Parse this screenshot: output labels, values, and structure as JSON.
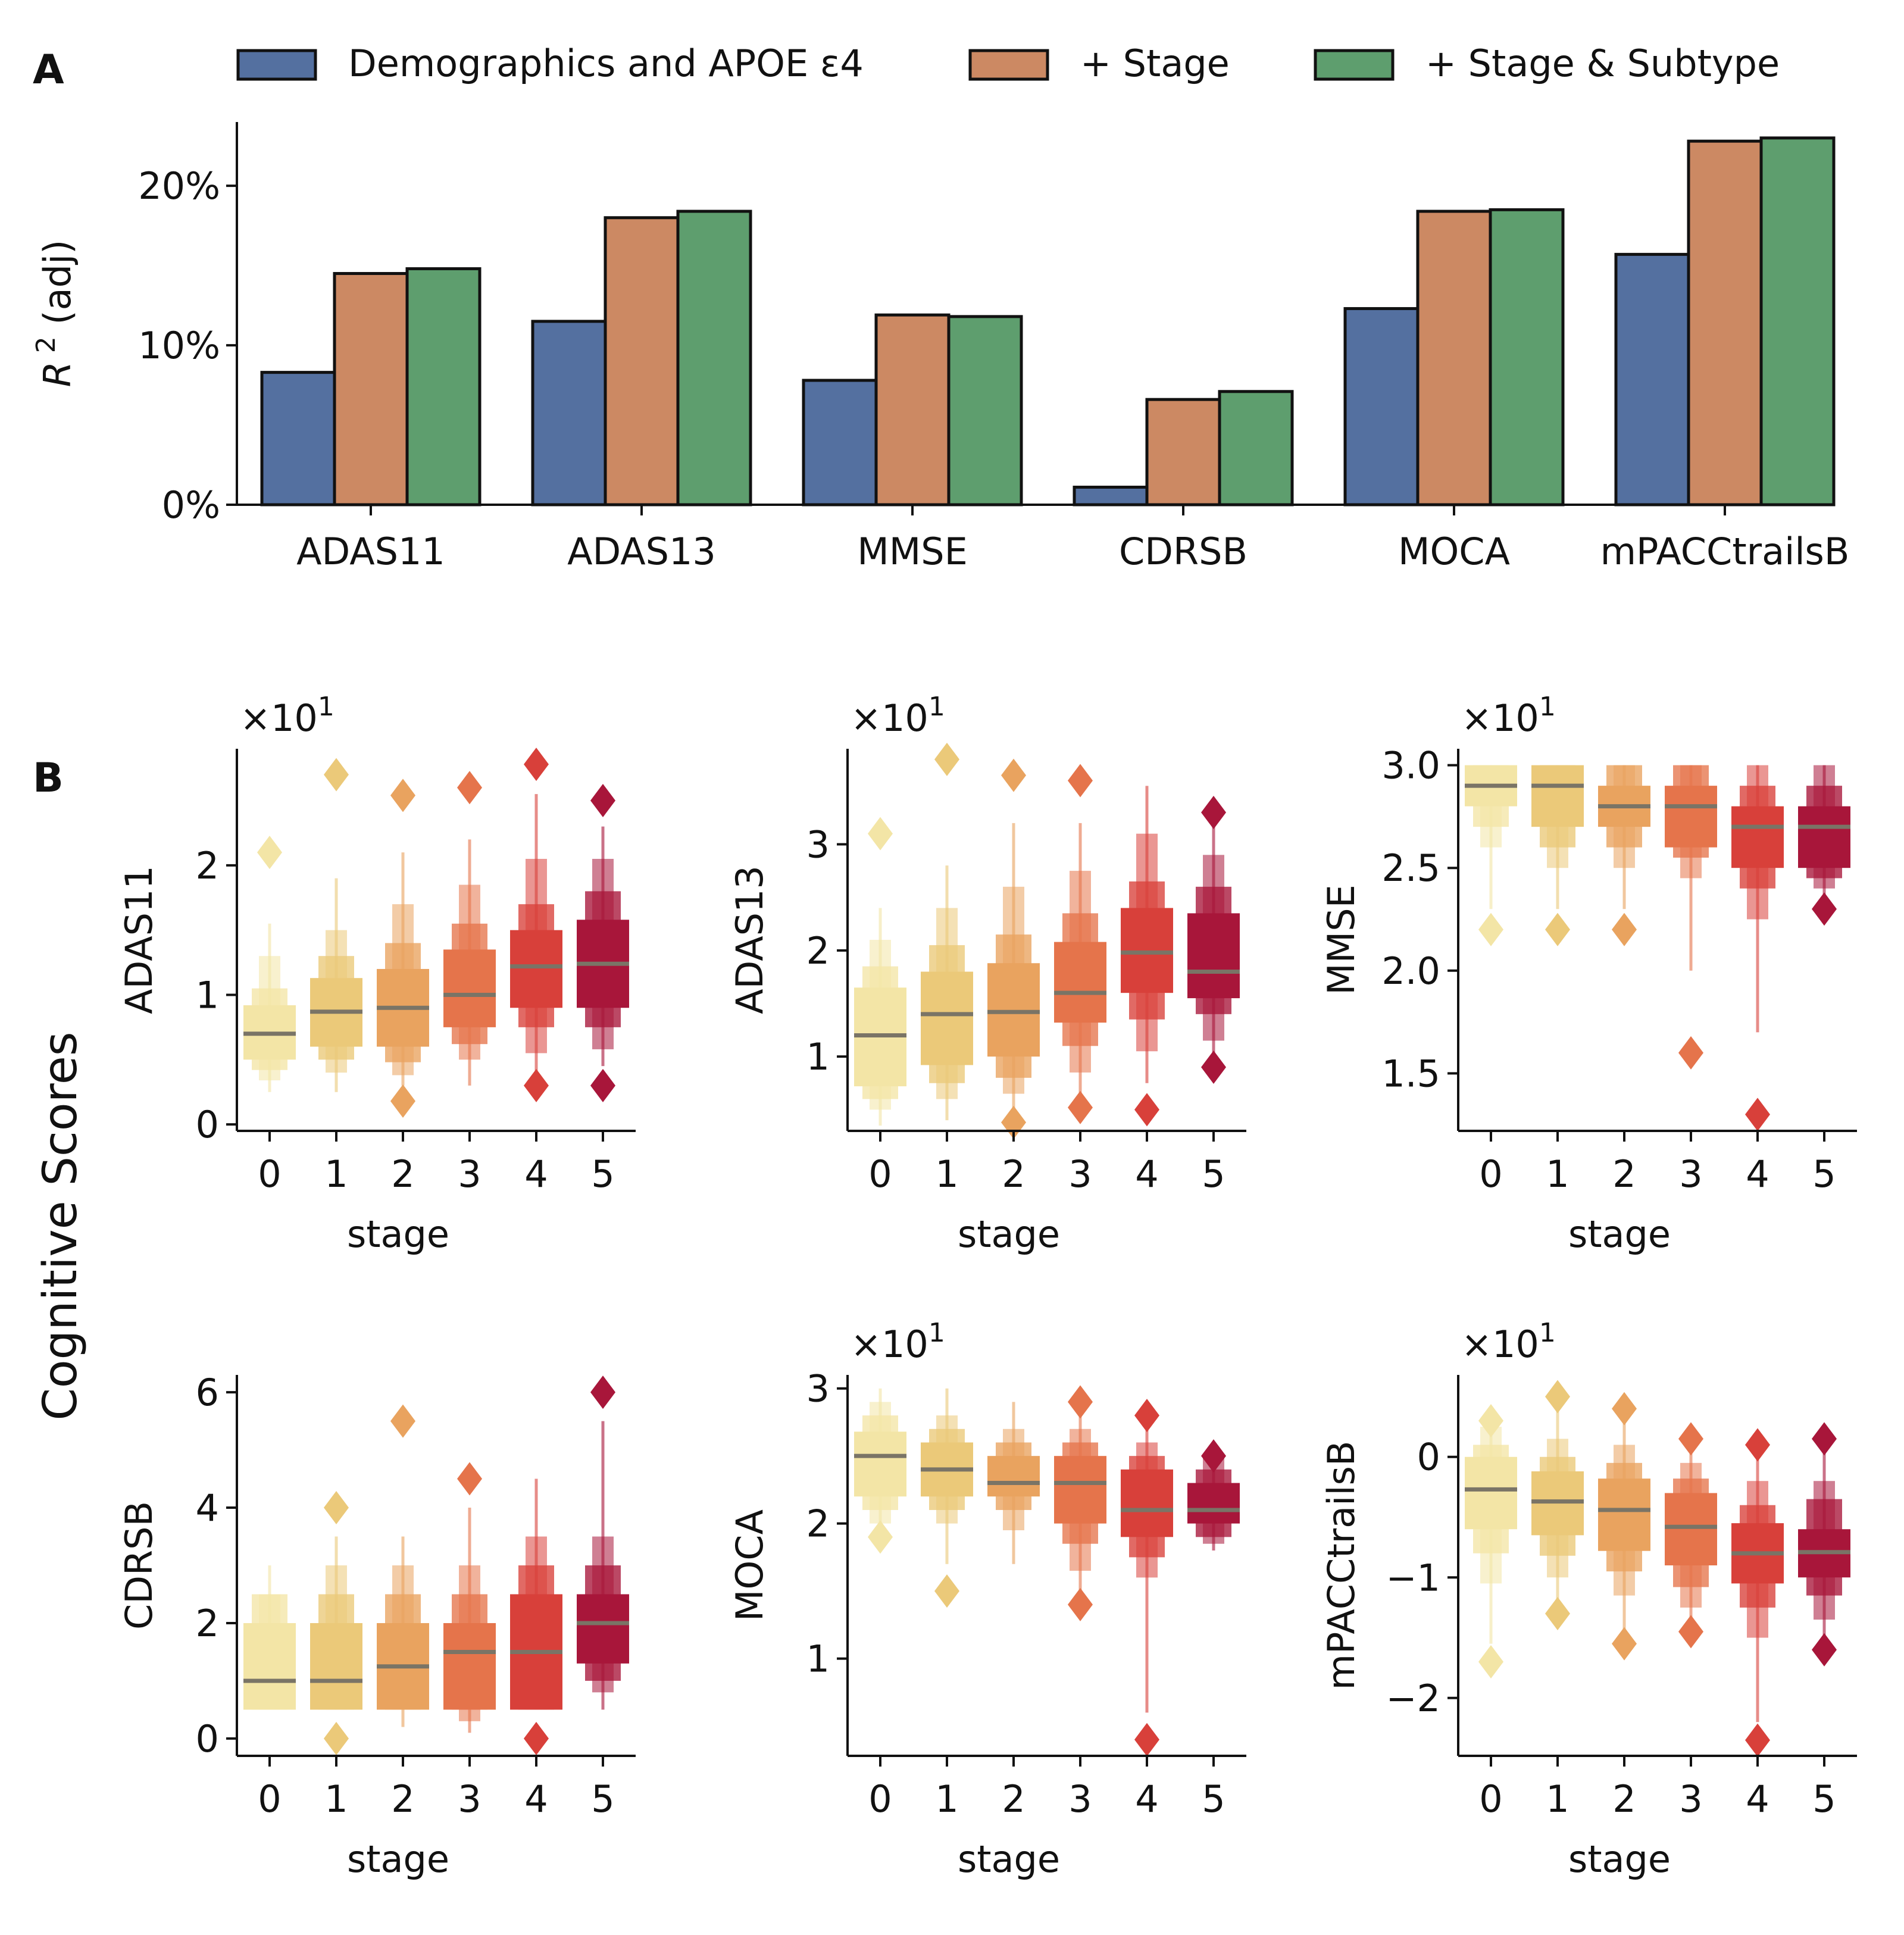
{
  "panel_labels": {
    "a": "A",
    "b": "B"
  },
  "shared_ylabel": "Cognitive Scores",
  "legend": [
    {
      "label": "Demographics and APOE ε4",
      "color": "#5470a0"
    },
    {
      "label": "+ Stage",
      "color": "#cc8963"
    },
    {
      "label": "+ Stage & Subtype",
      "color": "#5e9e6e"
    }
  ],
  "stage_colors": [
    "#f3e5a6",
    "#ebc979",
    "#e9a35f",
    "#e5744b",
    "#d8403a",
    "#a8163a"
  ],
  "chart_data": [
    {
      "id": "r2",
      "type": "bar",
      "ylabel": "R",
      "ylabel_sup": "2",
      "ylabel_rest": " (adj)",
      "ylim": [
        0,
        24
      ],
      "yticks": [
        0,
        10,
        20
      ],
      "ytick_labels": [
        "0%",
        "10%",
        "20%"
      ],
      "categories": [
        "ADAS11",
        "ADAS13",
        "MMSE",
        "CDRSB",
        "MOCA",
        "mPACCtrailsB"
      ],
      "series": [
        {
          "name": "Demographics and APOE ε4",
          "values": [
            8.3,
            11.5,
            7.8,
            1.1,
            12.3,
            15.7
          ]
        },
        {
          "name": "+ Stage",
          "values": [
            14.5,
            18.0,
            11.9,
            6.6,
            18.4,
            22.8
          ]
        },
        {
          "name": "+ Stage & Subtype",
          "values": [
            14.8,
            18.4,
            11.8,
            7.1,
            18.5,
            23.0
          ]
        }
      ]
    },
    {
      "id": "adas11",
      "type": "boxen",
      "ylabel": "ADAS11",
      "xlabel": "stage",
      "scale_label": "×10",
      "scale_exp": "1",
      "ylim": [
        -0.05,
        2.9
      ],
      "yticks": [
        0,
        1,
        2
      ],
      "ytick_labels": [
        "0",
        "1",
        "2"
      ],
      "x": [
        "0",
        "1",
        "2",
        "3",
        "4",
        "5"
      ],
      "boxes": [
        {
          "median": 0.7,
          "q1": 0.5,
          "q3": 0.92,
          "o1": 0.42,
          "o3": 1.05,
          "e1": 0.34,
          "e3": 1.3,
          "lo": 0.25,
          "hi": 1.55,
          "outliers": [
            2.1
          ]
        },
        {
          "median": 0.87,
          "q1": 0.6,
          "q3": 1.13,
          "o1": 0.5,
          "o3": 1.3,
          "e1": 0.4,
          "e3": 1.5,
          "lo": 0.25,
          "hi": 1.9,
          "outliers": [
            2.7
          ]
        },
        {
          "median": 0.9,
          "q1": 0.6,
          "q3": 1.2,
          "o1": 0.48,
          "o3": 1.4,
          "e1": 0.38,
          "e3": 1.7,
          "lo": 0.3,
          "hi": 2.1,
          "outliers": [
            0.18,
            2.54
          ]
        },
        {
          "median": 1.0,
          "q1": 0.75,
          "q3": 1.35,
          "o1": 0.62,
          "o3": 1.55,
          "e1": 0.5,
          "e3": 1.85,
          "lo": 0.3,
          "hi": 2.2,
          "outliers": [
            2.6
          ]
        },
        {
          "median": 1.22,
          "q1": 0.9,
          "q3": 1.5,
          "o1": 0.75,
          "o3": 1.7,
          "e1": 0.55,
          "e3": 2.05,
          "lo": 0.4,
          "hi": 2.55,
          "outliers": [
            0.3,
            2.78
          ]
        },
        {
          "median": 1.24,
          "q1": 0.9,
          "q3": 1.58,
          "o1": 0.75,
          "o3": 1.8,
          "e1": 0.58,
          "e3": 2.05,
          "lo": 0.45,
          "hi": 2.3,
          "outliers": [
            0.3,
            2.5
          ]
        }
      ]
    },
    {
      "id": "adas13",
      "type": "boxen",
      "ylabel": "ADAS13",
      "xlabel": "stage",
      "scale_label": "×10",
      "scale_exp": "1",
      "ylim": [
        0.3,
        3.9
      ],
      "yticks": [
        1,
        2,
        3
      ],
      "ytick_labels": [
        "1",
        "2",
        "3"
      ],
      "x": [
        "0",
        "1",
        "2",
        "3",
        "4",
        "5"
      ],
      "boxes": [
        {
          "median": 1.2,
          "q1": 0.72,
          "q3": 1.65,
          "o1": 0.6,
          "o3": 1.85,
          "e1": 0.5,
          "e3": 2.1,
          "lo": 0.35,
          "hi": 2.4,
          "outliers": [
            3.1
          ]
        },
        {
          "median": 1.4,
          "q1": 0.92,
          "q3": 1.8,
          "o1": 0.75,
          "o3": 2.05,
          "e1": 0.6,
          "e3": 2.4,
          "lo": 0.4,
          "hi": 2.8,
          "outliers": [
            3.8
          ]
        },
        {
          "median": 1.42,
          "q1": 1.0,
          "q3": 1.88,
          "o1": 0.8,
          "o3": 2.15,
          "e1": 0.65,
          "e3": 2.6,
          "lo": 0.45,
          "hi": 3.2,
          "outliers": [
            0.38,
            3.65
          ]
        },
        {
          "median": 1.6,
          "q1": 1.32,
          "q3": 2.08,
          "o1": 1.1,
          "o3": 2.35,
          "e1": 0.85,
          "e3": 2.75,
          "lo": 0.6,
          "hi": 3.2,
          "outliers": [
            0.52,
            3.6
          ]
        },
        {
          "median": 1.98,
          "q1": 1.6,
          "q3": 2.4,
          "o1": 1.35,
          "o3": 2.65,
          "e1": 1.05,
          "e3": 3.1,
          "lo": 0.75,
          "hi": 3.55,
          "outliers": [
            0.5
          ]
        },
        {
          "median": 1.8,
          "q1": 1.55,
          "q3": 2.35,
          "o1": 1.4,
          "o3": 2.6,
          "e1": 1.15,
          "e3": 2.9,
          "lo": 0.95,
          "hi": 3.2,
          "outliers": [
            0.9,
            3.3
          ]
        }
      ]
    },
    {
      "id": "mmse",
      "type": "boxen",
      "ylabel": "MMSE",
      "xlabel": "stage",
      "scale_label": "×10",
      "scale_exp": "1",
      "ylim": [
        1.22,
        3.08
      ],
      "yticks": [
        1.5,
        2.0,
        2.5,
        3.0
      ],
      "ytick_labels": [
        "1.5",
        "2.0",
        "2.5",
        "3.0"
      ],
      "x": [
        "0",
        "1",
        "2",
        "3",
        "4",
        "5"
      ],
      "boxes": [
        {
          "median": 2.9,
          "q1": 2.8,
          "q3": 3.0,
          "o1": 2.7,
          "o3": 3.0,
          "e1": 2.6,
          "e3": 3.0,
          "lo": 2.3,
          "hi": 3.0,
          "outliers": [
            2.2
          ]
        },
        {
          "median": 2.9,
          "q1": 2.7,
          "q3": 3.0,
          "o1": 2.6,
          "o3": 3.0,
          "e1": 2.5,
          "e3": 3.0,
          "lo": 2.3,
          "hi": 3.0,
          "outliers": [
            2.2
          ]
        },
        {
          "median": 2.8,
          "q1": 2.7,
          "q3": 2.9,
          "o1": 2.6,
          "o3": 3.0,
          "e1": 2.5,
          "e3": 3.0,
          "lo": 2.3,
          "hi": 3.0,
          "outliers": [
            2.2
          ]
        },
        {
          "median": 2.8,
          "q1": 2.6,
          "q3": 2.9,
          "o1": 2.55,
          "o3": 3.0,
          "e1": 2.45,
          "e3": 3.0,
          "lo": 2.0,
          "hi": 3.0,
          "outliers": [
            1.6
          ]
        },
        {
          "median": 2.7,
          "q1": 2.5,
          "q3": 2.8,
          "o1": 2.4,
          "o3": 2.9,
          "e1": 2.25,
          "e3": 3.0,
          "lo": 1.7,
          "hi": 3.0,
          "outliers": [
            1.3
          ]
        },
        {
          "median": 2.7,
          "q1": 2.5,
          "q3": 2.8,
          "o1": 2.45,
          "o3": 2.9,
          "e1": 2.4,
          "e3": 3.0,
          "lo": 2.3,
          "hi": 3.0,
          "outliers": [
            2.3
          ]
        }
      ]
    },
    {
      "id": "cdrsb",
      "type": "boxen",
      "ylabel": "CDRSB",
      "xlabel": "stage",
      "scale_label": "",
      "scale_exp": "",
      "ylim": [
        -0.3,
        6.3
      ],
      "yticks": [
        0,
        2,
        4,
        6
      ],
      "ytick_labels": [
        "0",
        "2",
        "4",
        "6"
      ],
      "x": [
        "0",
        "1",
        "2",
        "3",
        "4",
        "5"
      ],
      "boxes": [
        {
          "median": 1.0,
          "q1": 0.5,
          "q3": 2.0,
          "o1": 0.5,
          "o3": 2.5,
          "e1": 0.5,
          "e3": 2.5,
          "lo": 0.5,
          "hi": 3.0,
          "outliers": []
        },
        {
          "median": 1.0,
          "q1": 0.5,
          "q3": 2.0,
          "o1": 0.5,
          "o3": 2.5,
          "e1": 0.5,
          "e3": 3.0,
          "lo": 0.5,
          "hi": 3.5,
          "outliers": [
            0.0,
            4.0
          ]
        },
        {
          "median": 1.25,
          "q1": 0.5,
          "q3": 2.0,
          "o1": 0.5,
          "o3": 2.5,
          "e1": 0.5,
          "e3": 3.0,
          "lo": 0.2,
          "hi": 3.5,
          "outliers": [
            5.5
          ]
        },
        {
          "median": 1.5,
          "q1": 0.5,
          "q3": 2.0,
          "o1": 0.5,
          "o3": 2.5,
          "e1": 0.3,
          "e3": 3.0,
          "lo": 0.1,
          "hi": 4.0,
          "outliers": [
            4.5
          ]
        },
        {
          "median": 1.5,
          "q1": 0.5,
          "q3": 2.5,
          "o1": 0.5,
          "o3": 3.0,
          "e1": 0.5,
          "e3": 3.5,
          "lo": 0.5,
          "hi": 4.5,
          "outliers": [
            0.0
          ]
        },
        {
          "median": 2.0,
          "q1": 1.3,
          "q3": 2.5,
          "o1": 1.0,
          "o3": 3.0,
          "e1": 0.8,
          "e3": 3.5,
          "lo": 0.5,
          "hi": 5.5,
          "outliers": [
            6.0
          ]
        }
      ]
    },
    {
      "id": "moca",
      "type": "boxen",
      "ylabel": "MOCA",
      "xlabel": "stage",
      "scale_label": "×10",
      "scale_exp": "1",
      "ylim": [
        0.28,
        3.1
      ],
      "yticks": [
        1,
        2,
        3
      ],
      "ytick_labels": [
        "1",
        "2",
        "3"
      ],
      "x": [
        "0",
        "1",
        "2",
        "3",
        "4",
        "5"
      ],
      "boxes": [
        {
          "median": 2.5,
          "q1": 2.2,
          "q3": 2.68,
          "o1": 2.1,
          "o3": 2.8,
          "e1": 2.0,
          "e3": 2.9,
          "lo": 1.95,
          "hi": 3.0,
          "outliers": [
            1.9
          ]
        },
        {
          "median": 2.4,
          "q1": 2.2,
          "q3": 2.6,
          "o1": 2.1,
          "o3": 2.7,
          "e1": 2.0,
          "e3": 2.8,
          "lo": 1.7,
          "hi": 3.0,
          "outliers": [
            1.5
          ]
        },
        {
          "median": 2.3,
          "q1": 2.2,
          "q3": 2.5,
          "o1": 2.1,
          "o3": 2.6,
          "e1": 1.95,
          "e3": 2.7,
          "lo": 1.7,
          "hi": 2.9,
          "outliers": []
        },
        {
          "median": 2.3,
          "q1": 2.0,
          "q3": 2.5,
          "o1": 1.85,
          "o3": 2.6,
          "e1": 1.65,
          "e3": 2.7,
          "lo": 1.5,
          "hi": 2.9,
          "outliers": [
            1.4,
            2.9
          ]
        },
        {
          "median": 2.1,
          "q1": 1.9,
          "q3": 2.4,
          "o1": 1.75,
          "o3": 2.5,
          "e1": 1.6,
          "e3": 2.6,
          "lo": 0.6,
          "hi": 2.8,
          "outliers": [
            0.4,
            2.8
          ]
        },
        {
          "median": 2.1,
          "q1": 2.0,
          "q3": 2.3,
          "o1": 1.9,
          "o3": 2.4,
          "e1": 1.85,
          "e3": 2.5,
          "lo": 1.8,
          "hi": 2.6,
          "outliers": [
            2.5
          ]
        }
      ]
    },
    {
      "id": "mpacc",
      "type": "boxen",
      "ylabel": "mPACCtrailsB",
      "xlabel": "stage",
      "scale_label": "×10",
      "scale_exp": "1",
      "ylim": [
        -2.48,
        0.68
      ],
      "yticks": [
        -2,
        -1,
        0
      ],
      "ytick_labels": [
        "−2",
        "−1",
        "0"
      ],
      "x": [
        "0",
        "1",
        "2",
        "3",
        "4",
        "5"
      ],
      "boxes": [
        {
          "median": -0.27,
          "q1": -0.6,
          "q3": 0.0,
          "o1": -0.8,
          "o3": 0.1,
          "e1": -1.05,
          "e3": 0.25,
          "lo": -1.55,
          "hi": 0.3,
          "outliers": [
            -1.7,
            0.3
          ]
        },
        {
          "median": -0.37,
          "q1": -0.65,
          "q3": -0.12,
          "o1": -0.82,
          "o3": 0.0,
          "e1": -1.0,
          "e3": 0.15,
          "lo": -1.2,
          "hi": 0.5,
          "outliers": [
            -1.3,
            0.5
          ]
        },
        {
          "median": -0.44,
          "q1": -0.78,
          "q3": -0.18,
          "o1": -0.95,
          "o3": -0.05,
          "e1": -1.15,
          "e3": 0.1,
          "lo": -1.45,
          "hi": 0.35,
          "outliers": [
            -1.55,
            0.4
          ]
        },
        {
          "median": -0.58,
          "q1": -0.9,
          "q3": -0.3,
          "o1": -1.08,
          "o3": -0.18,
          "e1": -1.25,
          "e3": -0.05,
          "lo": -1.4,
          "hi": 0.1,
          "outliers": [
            -1.45,
            0.15
          ]
        },
        {
          "median": -0.8,
          "q1": -1.05,
          "q3": -0.55,
          "o1": -1.25,
          "o3": -0.4,
          "e1": -1.5,
          "e3": -0.2,
          "lo": -2.2,
          "hi": 0.05,
          "outliers": [
            -2.35,
            0.1
          ]
        },
        {
          "median": -0.79,
          "q1": -1.0,
          "q3": -0.6,
          "o1": -1.15,
          "o3": -0.35,
          "e1": -1.35,
          "e3": -0.2,
          "lo": -1.5,
          "hi": 0.15,
          "outliers": [
            -1.6,
            0.15
          ]
        }
      ]
    }
  ]
}
